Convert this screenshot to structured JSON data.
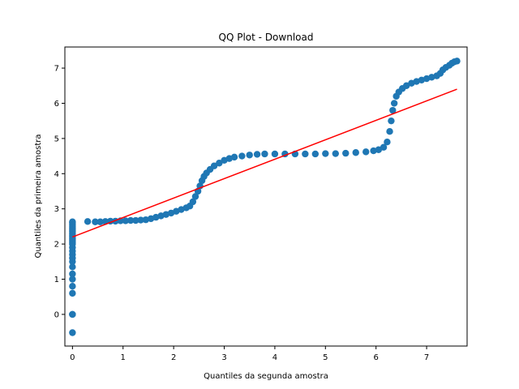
{
  "chart_data": {
    "type": "scatter",
    "title": "QQ Plot - Download",
    "xlabel": "Quantiles da segunda amostra",
    "ylabel": "Quantiles da primeira amostra",
    "xlim": [
      -0.15,
      7.8
    ],
    "ylim": [
      -0.9,
      7.6
    ],
    "xticks": [
      0,
      1,
      2,
      3,
      4,
      5,
      6,
      7
    ],
    "yticks": [
      0,
      1,
      2,
      3,
      4,
      5,
      6,
      7
    ],
    "grid": false,
    "colors": {
      "points": "#1f77b4",
      "fit_line": "#ff0000"
    },
    "points": [
      [
        0,
        -0.52
      ],
      [
        0,
        0.0
      ],
      [
        0,
        0.0
      ],
      [
        0,
        0.0
      ],
      [
        0,
        0.6
      ],
      [
        0,
        0.8
      ],
      [
        0,
        1.0
      ],
      [
        0,
        1.15
      ],
      [
        0,
        1.35
      ],
      [
        0,
        1.5
      ],
      [
        0,
        1.6
      ],
      [
        0,
        1.7
      ],
      [
        0,
        1.8
      ],
      [
        0,
        1.9
      ],
      [
        0,
        2.0
      ],
      [
        0,
        2.05
      ],
      [
        0,
        2.1
      ],
      [
        0,
        2.15
      ],
      [
        0,
        2.2
      ],
      [
        0,
        2.25
      ],
      [
        0,
        2.3
      ],
      [
        0,
        2.35
      ],
      [
        0,
        2.4
      ],
      [
        0,
        2.45
      ],
      [
        0,
        2.5
      ],
      [
        0,
        2.55
      ],
      [
        0,
        2.6
      ],
      [
        0,
        2.63
      ],
      [
        0.3,
        2.64
      ],
      [
        0.45,
        2.63
      ],
      [
        0.55,
        2.63
      ],
      [
        0.65,
        2.64
      ],
      [
        0.75,
        2.65
      ],
      [
        0.85,
        2.65
      ],
      [
        0.95,
        2.66
      ],
      [
        1.05,
        2.66
      ],
      [
        1.15,
        2.67
      ],
      [
        1.25,
        2.67
      ],
      [
        1.35,
        2.68
      ],
      [
        1.45,
        2.69
      ],
      [
        1.55,
        2.72
      ],
      [
        1.65,
        2.76
      ],
      [
        1.75,
        2.8
      ],
      [
        1.85,
        2.84
      ],
      [
        1.95,
        2.88
      ],
      [
        2.05,
        2.93
      ],
      [
        2.15,
        2.98
      ],
      [
        2.25,
        3.03
      ],
      [
        2.32,
        3.08
      ],
      [
        2.38,
        3.2
      ],
      [
        2.43,
        3.35
      ],
      [
        2.48,
        3.5
      ],
      [
        2.52,
        3.65
      ],
      [
        2.56,
        3.8
      ],
      [
        2.6,
        3.92
      ],
      [
        2.65,
        4.02
      ],
      [
        2.72,
        4.12
      ],
      [
        2.8,
        4.22
      ],
      [
        2.9,
        4.3
      ],
      [
        3.0,
        4.38
      ],
      [
        3.1,
        4.43
      ],
      [
        3.2,
        4.47
      ],
      [
        3.35,
        4.5
      ],
      [
        3.5,
        4.53
      ],
      [
        3.65,
        4.55
      ],
      [
        3.8,
        4.56
      ],
      [
        4.0,
        4.56
      ],
      [
        4.2,
        4.56
      ],
      [
        4.4,
        4.56
      ],
      [
        4.6,
        4.56
      ],
      [
        4.8,
        4.56
      ],
      [
        5.0,
        4.57
      ],
      [
        5.2,
        4.57
      ],
      [
        5.4,
        4.58
      ],
      [
        5.6,
        4.6
      ],
      [
        5.8,
        4.62
      ],
      [
        5.95,
        4.65
      ],
      [
        6.05,
        4.68
      ],
      [
        6.15,
        4.75
      ],
      [
        6.22,
        4.9
      ],
      [
        6.27,
        5.2
      ],
      [
        6.3,
        5.5
      ],
      [
        6.33,
        5.8
      ],
      [
        6.36,
        6.0
      ],
      [
        6.4,
        6.2
      ],
      [
        6.45,
        6.32
      ],
      [
        6.52,
        6.42
      ],
      [
        6.6,
        6.5
      ],
      [
        6.7,
        6.57
      ],
      [
        6.8,
        6.62
      ],
      [
        6.9,
        6.66
      ],
      [
        7.0,
        6.7
      ],
      [
        7.1,
        6.74
      ],
      [
        7.2,
        6.78
      ],
      [
        7.27,
        6.85
      ],
      [
        7.32,
        6.95
      ],
      [
        7.38,
        7.02
      ],
      [
        7.45,
        7.08
      ],
      [
        7.5,
        7.14
      ],
      [
        7.55,
        7.18
      ],
      [
        7.6,
        7.2
      ]
    ],
    "fit_line": {
      "x": [
        0.0,
        7.6
      ],
      "y": [
        2.2,
        6.4
      ]
    }
  }
}
